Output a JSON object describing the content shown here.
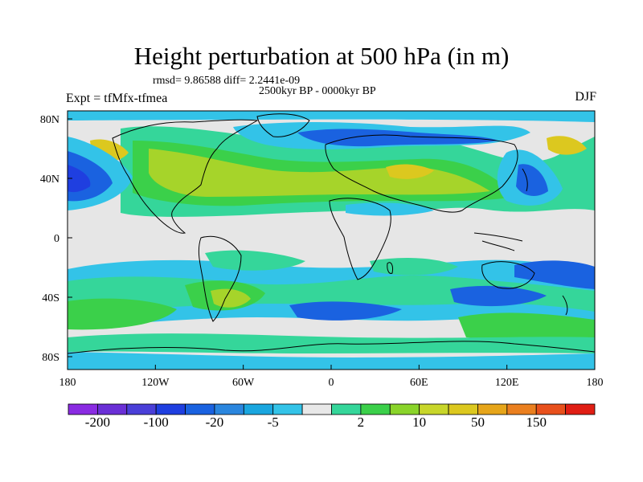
{
  "title": "Height perturbation at 500 hPa (in m)",
  "stats": "rmsd= 9.86588 diff= 2.2441e-09",
  "period": "2500kyr BP - 0000kyr BP",
  "experiment": "Expt = tfMfx-tfmea",
  "season": "DJF",
  "axes": {
    "x_ticks": [
      "180",
      "120W",
      "60W",
      "0",
      "60E",
      "120E",
      "180"
    ],
    "y_ticks": [
      "80N",
      "40N",
      "0",
      "40S",
      "80S"
    ]
  },
  "colorbar": {
    "colors": [
      "#8a2be2",
      "#6a2fd6",
      "#4a3fd8",
      "#1f3fe0",
      "#1a62e0",
      "#2a86de",
      "#1aa6df",
      "#33c3e8",
      "#e8e8e8",
      "#35d69a",
      "#3bd04a",
      "#8ad42a",
      "#c8d62a",
      "#dcc81f",
      "#e6a51a",
      "#ea7f1f",
      "#e8501c",
      "#e01e14"
    ],
    "labels": [
      "-200",
      "-100",
      "-20",
      "-5",
      "2",
      "10",
      "50",
      "150"
    ]
  },
  "palette": {
    "neutral": "#e6e6e6",
    "light_blue": "#33c3e8",
    "blue": "#1a62e0",
    "dark_blue": "#1f3fe0",
    "teal": "#35d69a",
    "green": "#3bd04a",
    "yellow_green": "#a6d42a",
    "yellow": "#dcc81f"
  }
}
